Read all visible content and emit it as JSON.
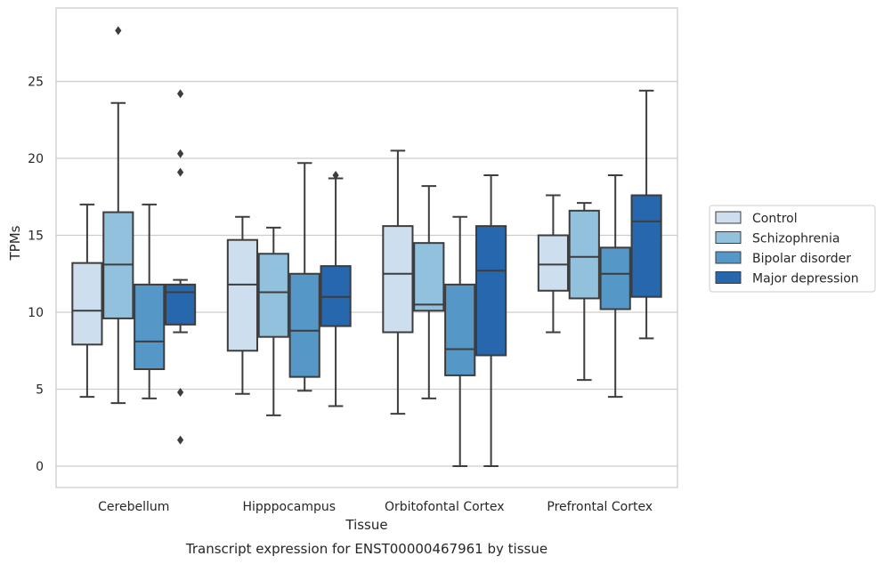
{
  "chart_data": {
    "type": "box",
    "title": "",
    "caption": "Transcript expression for ENST00000467961 by tissue",
    "xlabel": "Tissue",
    "ylabel": "TPMs",
    "ylim": [
      -1.35,
      29.4
    ],
    "yticks": [
      0,
      5,
      10,
      15,
      20,
      25
    ],
    "grid": "y",
    "legend_position": "right",
    "categories": [
      "Cerebellum",
      "Hipppocampus",
      "Orbitofontal Cortex",
      "Prefrontal Cortex"
    ],
    "series": [
      {
        "name": "Control",
        "color": "#cddfef",
        "boxes": [
          {
            "whislo": 4.5,
            "q1": 7.9,
            "med": 10.1,
            "q3": 13.2,
            "whishi": 17.0,
            "fliers": []
          },
          {
            "whislo": 4.7,
            "q1": 7.5,
            "med": 11.8,
            "q3": 14.7,
            "whishi": 16.2,
            "fliers": []
          },
          {
            "whislo": 3.4,
            "q1": 8.7,
            "med": 12.5,
            "q3": 15.6,
            "whishi": 20.5,
            "fliers": []
          },
          {
            "whislo": 8.7,
            "q1": 11.4,
            "med": 13.1,
            "q3": 15.0,
            "whishi": 17.6,
            "fliers": []
          }
        ]
      },
      {
        "name": "Schizophrenia",
        "color": "#92c1dd",
        "boxes": [
          {
            "whislo": 4.1,
            "q1": 9.6,
            "med": 13.1,
            "q3": 16.5,
            "whishi": 23.6,
            "fliers": [
              28.3
            ]
          },
          {
            "whislo": 3.3,
            "q1": 8.4,
            "med": 11.3,
            "q3": 13.8,
            "whishi": 15.5,
            "fliers": []
          },
          {
            "whislo": 4.4,
            "q1": 10.1,
            "med": 10.5,
            "q3": 14.5,
            "whishi": 18.2,
            "fliers": []
          },
          {
            "whislo": 5.6,
            "q1": 10.9,
            "med": 13.6,
            "q3": 16.6,
            "whishi": 17.1,
            "fliers": []
          }
        ]
      },
      {
        "name": "Bipolar disorder",
        "color": "#5597c6",
        "boxes": [
          {
            "whislo": 4.4,
            "q1": 6.3,
            "med": 8.1,
            "q3": 11.8,
            "whishi": 17.0,
            "fliers": []
          },
          {
            "whislo": 4.9,
            "q1": 5.8,
            "med": 8.8,
            "q3": 12.5,
            "whishi": 19.7,
            "fliers": []
          },
          {
            "whislo": 0.0,
            "q1": 5.9,
            "med": 7.6,
            "q3": 11.8,
            "whishi": 16.2,
            "fliers": []
          },
          {
            "whislo": 4.5,
            "q1": 10.2,
            "med": 12.5,
            "q3": 14.2,
            "whishi": 18.9,
            "fliers": []
          }
        ]
      },
      {
        "name": "Major depression",
        "color": "#2767ad",
        "boxes": [
          {
            "whislo": 8.7,
            "q1": 9.2,
            "med": 11.3,
            "q3": 11.8,
            "whishi": 12.1,
            "fliers": [
              24.2,
              20.3,
              19.1,
              4.8,
              1.7
            ]
          },
          {
            "whislo": 3.9,
            "q1": 9.1,
            "med": 11.0,
            "q3": 13.0,
            "whishi": 18.7,
            "fliers": [
              18.9
            ]
          },
          {
            "whislo": 0.0,
            "q1": 7.2,
            "med": 12.7,
            "q3": 15.6,
            "whishi": 18.9,
            "fliers": []
          },
          {
            "whislo": 8.3,
            "q1": 11.0,
            "med": 15.9,
            "q3": 17.6,
            "whishi": 24.4,
            "fliers": []
          }
        ]
      }
    ]
  }
}
